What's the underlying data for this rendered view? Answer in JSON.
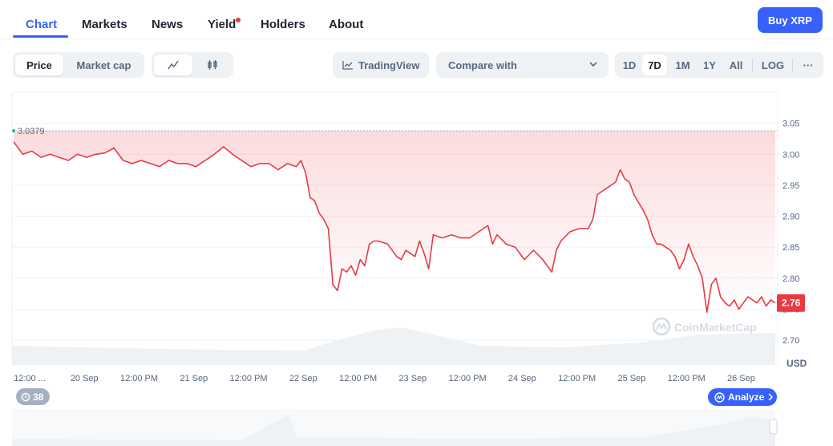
{
  "nav": {
    "tabs": [
      {
        "label": "Chart",
        "active": true
      },
      {
        "label": "Markets"
      },
      {
        "label": "News"
      },
      {
        "label": "Yield",
        "has_dot": true
      },
      {
        "label": "Holders"
      },
      {
        "label": "About"
      }
    ],
    "buy_label": "Buy XRP"
  },
  "controls": {
    "price_label": "Price",
    "marketcap_label": "Market cap",
    "tradingview_label": "TradingView",
    "compare_label": "Compare with",
    "ranges": [
      "1D",
      "7D",
      "1M",
      "1Y",
      "All"
    ],
    "active_range": "7D",
    "log_label": "LOG",
    "more_label": "···"
  },
  "colors": {
    "accent": "#3861fb",
    "line": "#ea3943",
    "grid": "#eff2f5",
    "axis_text": "#58667e"
  },
  "chart_data": {
    "type": "line",
    "title": "",
    "currency_label": "USD",
    "watermark": "CoinMarketCap",
    "ylim": [
      2.66,
      3.1
    ],
    "yticks": [
      3.05,
      3.0,
      2.95,
      2.9,
      2.85,
      2.8,
      2.75,
      2.7
    ],
    "ytick_labels": [
      "3.05",
      "3.00",
      "2.95",
      "2.90",
      "2.85",
      "2.80",
      "2.75",
      "2.70"
    ],
    "xlim": [
      0,
      167
    ],
    "xticks": [
      {
        "t": 0,
        "label": "12:00 ..."
      },
      {
        "t": 12,
        "label": "20 Sep"
      },
      {
        "t": 24,
        "label": "12:00 PM"
      },
      {
        "t": 36,
        "label": "21 Sep"
      },
      {
        "t": 48,
        "label": "12:00 PM"
      },
      {
        "t": 60,
        "label": "22 Sep"
      },
      {
        "t": 72,
        "label": "12:00 PM"
      },
      {
        "t": 84,
        "label": "23 Sep"
      },
      {
        "t": 96,
        "label": "12:00 PM"
      },
      {
        "t": 108,
        "label": "24 Sep"
      },
      {
        "t": 120,
        "label": "12:00 PM"
      },
      {
        "t": 132,
        "label": "25 Sep"
      },
      {
        "t": 144,
        "label": "12:00 PM"
      },
      {
        "t": 156,
        "label": "26 Sep"
      }
    ],
    "reference_line": {
      "value": 3.0379,
      "label": "3.0379"
    },
    "current_price": {
      "value": 2.76,
      "label": "2.76"
    },
    "series": [
      {
        "values": [
          [
            0,
            3.02
          ],
          [
            2,
            3.0
          ],
          [
            4,
            3.005
          ],
          [
            6,
            2.995
          ],
          [
            8,
            3.0
          ],
          [
            10,
            2.995
          ],
          [
            12,
            2.99
          ],
          [
            14,
            3.0
          ],
          [
            16,
            2.995
          ],
          [
            18,
            3.0
          ],
          [
            20,
            3.002
          ],
          [
            22,
            3.01
          ],
          [
            24,
            2.99
          ],
          [
            26,
            2.985
          ],
          [
            28,
            2.99
          ],
          [
            30,
            2.985
          ],
          [
            32,
            2.98
          ],
          [
            34,
            2.99
          ],
          [
            36,
            2.985
          ],
          [
            38,
            2.985
          ],
          [
            40,
            2.98
          ],
          [
            42,
            2.99
          ],
          [
            44,
            3.0
          ],
          [
            46,
            3.012
          ],
          [
            48,
            3.0
          ],
          [
            50,
            2.99
          ],
          [
            52,
            2.98
          ],
          [
            54,
            2.985
          ],
          [
            56,
            2.985
          ],
          [
            58,
            2.975
          ],
          [
            60,
            2.985
          ],
          [
            62,
            2.98
          ],
          [
            63,
            2.99
          ],
          [
            64,
            2.97
          ],
          [
            65,
            2.93
          ],
          [
            66,
            2.925
          ],
          [
            67,
            2.905
          ],
          [
            68,
            2.895
          ],
          [
            69,
            2.88
          ],
          [
            70,
            2.79
          ],
          [
            71,
            2.78
          ],
          [
            72,
            2.815
          ],
          [
            73,
            2.81
          ],
          [
            74,
            2.82
          ],
          [
            75,
            2.805
          ],
          [
            76,
            2.83
          ],
          [
            77,
            2.82
          ],
          [
            78,
            2.855
          ],
          [
            79,
            2.86
          ],
          [
            80,
            2.86
          ],
          [
            82,
            2.855
          ],
          [
            84,
            2.835
          ],
          [
            85,
            2.83
          ],
          [
            86,
            2.845
          ],
          [
            88,
            2.835
          ],
          [
            89,
            2.86
          ],
          [
            90,
            2.84
          ],
          [
            91,
            2.815
          ],
          [
            92,
            2.87
          ],
          [
            94,
            2.865
          ],
          [
            96,
            2.87
          ],
          [
            98,
            2.865
          ],
          [
            100,
            2.865
          ],
          [
            102,
            2.875
          ],
          [
            104,
            2.885
          ],
          [
            105,
            2.855
          ],
          [
            106,
            2.87
          ],
          [
            108,
            2.855
          ],
          [
            110,
            2.85
          ],
          [
            112,
            2.83
          ],
          [
            114,
            2.845
          ],
          [
            116,
            2.83
          ],
          [
            117,
            2.82
          ],
          [
            118,
            2.81
          ],
          [
            119,
            2.845
          ],
          [
            120,
            2.86
          ],
          [
            122,
            2.875
          ],
          [
            124,
            2.88
          ],
          [
            126,
            2.88
          ],
          [
            127,
            2.895
          ],
          [
            128,
            2.935
          ],
          [
            130,
            2.945
          ],
          [
            132,
            2.955
          ],
          [
            133,
            2.975
          ],
          [
            134,
            2.96
          ],
          [
            135,
            2.955
          ],
          [
            136,
            2.935
          ],
          [
            138,
            2.91
          ],
          [
            139,
            2.895
          ],
          [
            140,
            2.87
          ],
          [
            141,
            2.855
          ],
          [
            142,
            2.855
          ],
          [
            143,
            2.85
          ],
          [
            144,
            2.845
          ],
          [
            145,
            2.835
          ],
          [
            146,
            2.815
          ],
          [
            147,
            2.83
          ],
          [
            148,
            2.855
          ],
          [
            149,
            2.835
          ],
          [
            150,
            2.82
          ],
          [
            151,
            2.8
          ],
          [
            152,
            2.745
          ],
          [
            153,
            2.79
          ],
          [
            154,
            2.8
          ],
          [
            155,
            2.77
          ],
          [
            156,
            2.76
          ],
          [
            157,
            2.755
          ],
          [
            158,
            2.765
          ],
          [
            159,
            2.75
          ],
          [
            160,
            2.76
          ],
          [
            161,
            2.77
          ],
          [
            162,
            2.765
          ],
          [
            163,
            2.76
          ],
          [
            164,
            2.77
          ],
          [
            165,
            2.755
          ],
          [
            166,
            2.765
          ],
          [
            167,
            2.76
          ]
        ]
      }
    ],
    "grid": true
  },
  "badges": {
    "history_count": "38",
    "analyze_label": "Analyze"
  }
}
